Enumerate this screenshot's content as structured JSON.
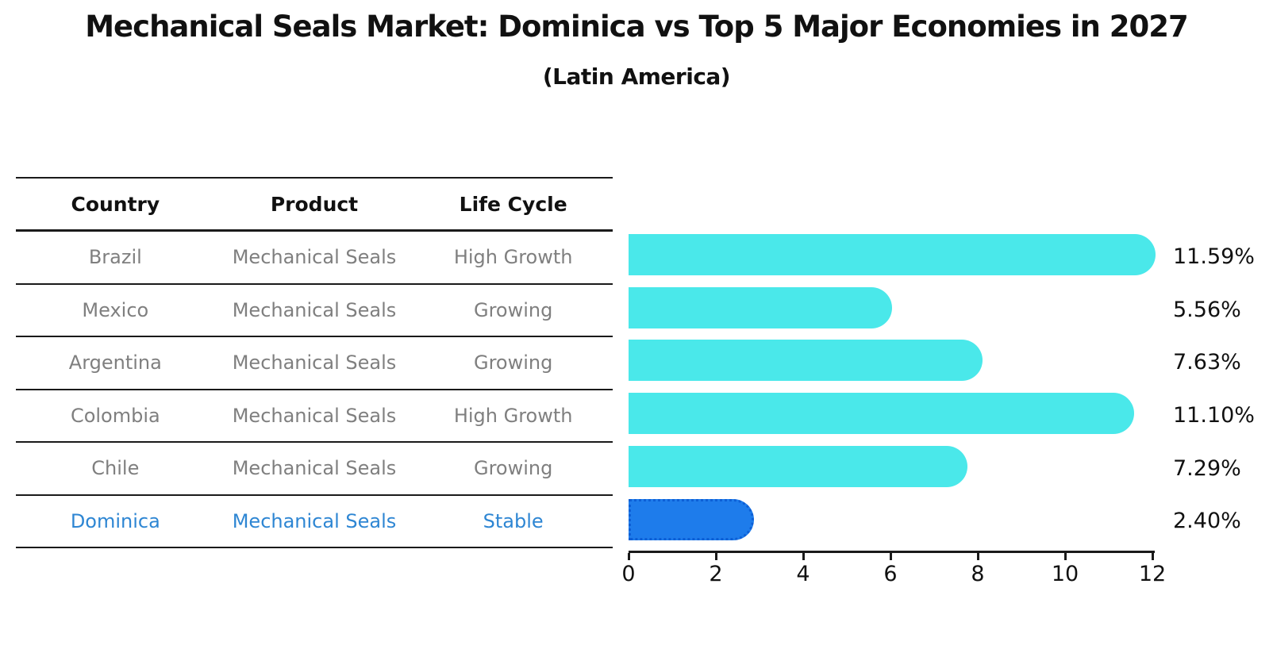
{
  "title": "Mechanical Seals Market: Dominica vs Top 5 Major Economies in 2027",
  "subtitle": "(Latin America)",
  "table": {
    "columns": [
      "Country",
      "Product",
      "Life Cycle"
    ],
    "rows": [
      {
        "country": "Brazil",
        "product": "Mechanical Seals",
        "life_cycle": "High Growth",
        "highlight": false
      },
      {
        "country": "Mexico",
        "product": "Mechanical Seals",
        "life_cycle": "Growing",
        "highlight": false
      },
      {
        "country": "Argentina",
        "product": "Mechanical Seals",
        "life_cycle": "Growing",
        "highlight": false
      },
      {
        "country": "Colombia",
        "product": "Mechanical Seals",
        "life_cycle": "High Growth",
        "highlight": false
      },
      {
        "country": "Chile",
        "product": "Mechanical Seals",
        "life_cycle": "Growing",
        "highlight": false
      },
      {
        "country": "Dominica",
        "product": "Mechanical Seals",
        "life_cycle": "Stable",
        "highlight": true
      }
    ]
  },
  "chart_data": {
    "type": "bar",
    "orientation": "horizontal",
    "title": "Mechanical Seals Market: Dominica vs Top 5 Major Economies in 2027",
    "subtitle": "(Latin America)",
    "categories": [
      "Brazil",
      "Mexico",
      "Argentina",
      "Colombia",
      "Chile",
      "Dominica"
    ],
    "values": [
      11.59,
      5.56,
      7.63,
      11.1,
      7.29,
      2.4
    ],
    "value_labels": [
      "11.59%",
      "5.56%",
      "7.63%",
      "11.10%",
      "7.29%",
      "2.40%"
    ],
    "xlim": [
      0,
      12
    ],
    "x_ticks": [
      0,
      2,
      4,
      6,
      8,
      10,
      12
    ],
    "grid": false,
    "legend": false,
    "highlight_category": "Dominica"
  },
  "colors": {
    "bar_cyan": "#4ae8ea",
    "bar_blue": "#1e7ceb",
    "bar_blue_border": "#0d5fd6",
    "highlight_text": "#2e86d3",
    "row_text": "#7f7f7f",
    "axis_black": "#1a1a1a"
  }
}
